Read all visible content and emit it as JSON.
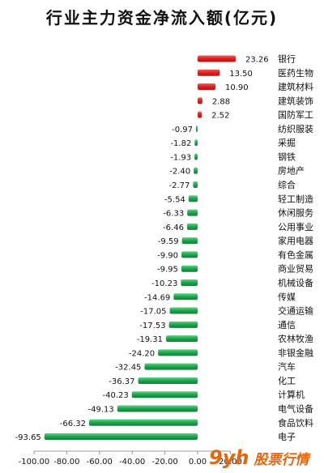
{
  "chart_data": {
    "type": "bar",
    "orientation": "horizontal",
    "title": "行业主力资金净流入额(亿元)",
    "categories": [
      "银行",
      "医药生物",
      "建筑材料",
      "建筑装饰",
      "国防军工",
      "纺织服装",
      "采掘",
      "钢铁",
      "房地产",
      "综合",
      "轻工制造",
      "休闲服务",
      "公用事业",
      "家用电器",
      "有色金属",
      "商业贸易",
      "机械设备",
      "传媒",
      "交通运输",
      "通信",
      "农林牧渔",
      "非银金融",
      "汽车",
      "化工",
      "计算机",
      "电气设备",
      "食品饮料",
      "电子"
    ],
    "values": [
      23.26,
      13.5,
      10.9,
      2.88,
      2.52,
      -0.97,
      -1.82,
      -1.93,
      -2.4,
      -2.77,
      -5.54,
      -6.33,
      -6.46,
      -9.59,
      -9.9,
      -9.95,
      -10.23,
      -14.69,
      -17.05,
      -17.53,
      -19.31,
      -24.2,
      -32.45,
      -36.37,
      -40.23,
      -49.13,
      -66.32,
      -93.65
    ],
    "value_labels": [
      "23.26",
      "13.50",
      "10.90",
      "2.88",
      "2.52",
      "-0.97",
      "-1.82",
      "-1.93",
      "-2.40",
      "-2.77",
      "-5.54",
      "-6.33",
      "-6.46",
      "-9.59",
      "-9.90",
      "-9.95",
      "-10.23",
      "-14.69",
      "-17.05",
      "-17.53",
      "-19.31",
      "-24.20",
      "-32.45",
      "-36.37",
      "-40.23",
      "-49.13",
      "-66.32",
      "-93.65"
    ],
    "xlim": [
      -100,
      20
    ],
    "xticks": [
      "-100.00",
      "-80.00",
      "-60.00",
      "-40.00",
      "-20.00",
      "0.00",
      "20.00"
    ],
    "xtick_values": [
      -100,
      -80,
      -60,
      -40,
      -20,
      0,
      20
    ],
    "grid": false,
    "colors": {
      "positive": "#e31c1c",
      "negative": "#1aa64a",
      "axis": "#999999",
      "text": "#111111"
    }
  },
  "watermark": {
    "logo": "9yh",
    "text": "股票行情"
  }
}
